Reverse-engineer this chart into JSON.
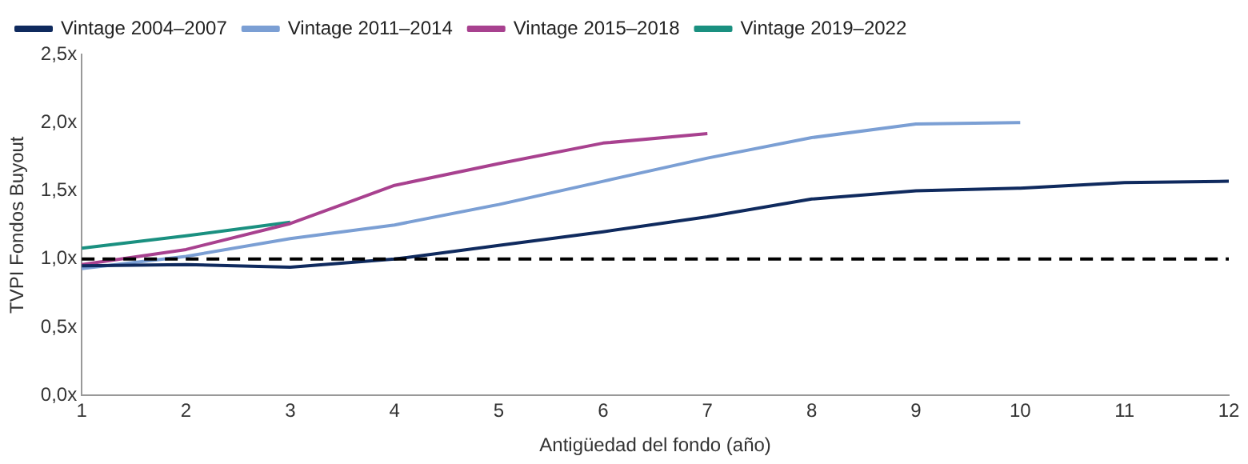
{
  "chart_data": {
    "type": "line",
    "xlabel": "Antigüedad del fondo (año)",
    "ylabel": "TVPI Fondos Buyout",
    "x": [
      1,
      2,
      3,
      4,
      5,
      6,
      7,
      8,
      9,
      10,
      11,
      12
    ],
    "xlim": [
      1,
      12
    ],
    "xticks": [
      1,
      2,
      3,
      4,
      5,
      6,
      7,
      8,
      9,
      10,
      11,
      12
    ],
    "ylim": [
      0,
      2.5
    ],
    "yticks": [
      {
        "value": 0,
        "label": "0,0x"
      },
      {
        "value": 0.5,
        "label": "0,5x"
      },
      {
        "value": 1,
        "label": "1,0x"
      },
      {
        "value": 1.5,
        "label": "1,5x"
      },
      {
        "value": 2,
        "label": "2,0x"
      },
      {
        "value": 2.5,
        "label": "2,5x"
      }
    ],
    "grid": false,
    "legend": "top",
    "marker": "none",
    "line_style": "solid",
    "series": [
      {
        "name": "Vintage 2004–2007",
        "color": "#0f2a5e",
        "values": [
          0.95,
          0.96,
          0.94,
          1.0,
          1.1,
          1.2,
          1.31,
          1.44,
          1.5,
          1.52,
          1.56,
          1.57
        ]
      },
      {
        "name": "Vintage 2011–2014",
        "color": "#7b9fd4",
        "values": [
          0.93,
          1.02,
          1.15,
          1.25,
          1.4,
          1.57,
          1.74,
          1.89,
          1.99,
          2.0,
          null,
          null
        ]
      },
      {
        "name": "Vintage 2015–2018",
        "color": "#a8418f",
        "values": [
          0.96,
          1.07,
          1.26,
          1.54,
          1.7,
          1.85,
          1.92,
          null,
          null,
          null,
          null,
          null
        ]
      },
      {
        "name": "Vintage 2019–2022",
        "color": "#1a9080",
        "values": [
          1.08,
          1.17,
          1.27,
          null,
          null,
          null,
          null,
          null,
          null,
          null,
          null,
          null
        ]
      }
    ],
    "ref_lines": [
      {
        "axis": "y",
        "value": 1,
        "color": "#000000",
        "line_style": "dashed"
      }
    ]
  }
}
